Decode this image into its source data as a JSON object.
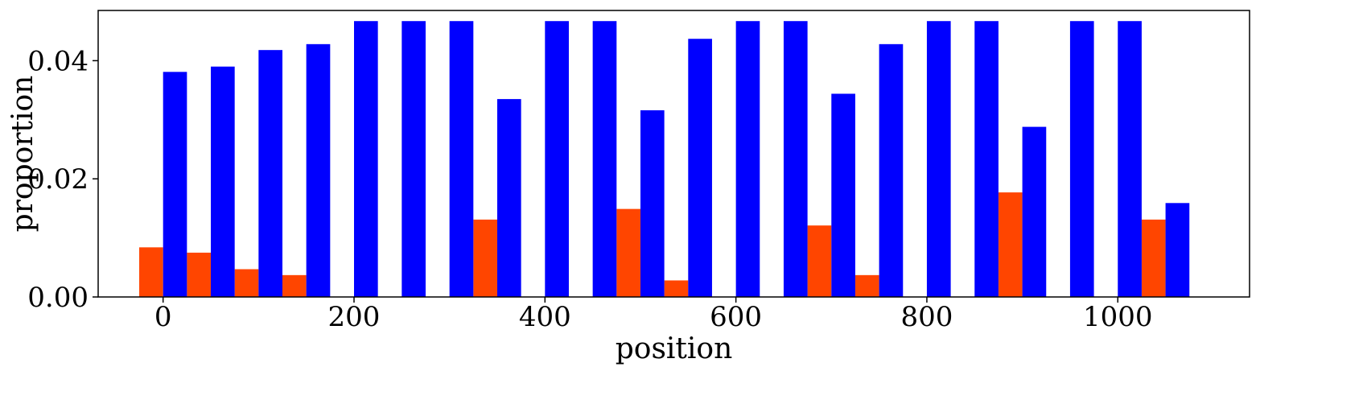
{
  "chart_data": {
    "type": "bar",
    "title": "",
    "xlabel": "position",
    "ylabel": "proportion",
    "xlim": [
      -68,
      1138
    ],
    "ylim": [
      0,
      0.0485
    ],
    "xticks": [
      0,
      200,
      400,
      600,
      800,
      1000
    ],
    "xtick_labels": [
      "0",
      "200",
      "400",
      "600",
      "800",
      "1000"
    ],
    "yticks": [
      0.0,
      0.02,
      0.04
    ],
    "ytick_labels": [
      "0.00",
      "0.02",
      "0.04"
    ],
    "grid": false,
    "legend": "none",
    "x": [
      0,
      50,
      100,
      150,
      200,
      250,
      300,
      350,
      400,
      450,
      500,
      550,
      600,
      650,
      700,
      750,
      800,
      850,
      900,
      950,
      1000,
      1050
    ],
    "series": [
      {
        "color": "#ff4500",
        "values": [
          0.0084,
          0.0075,
          0.0047,
          0.0037,
          0.0,
          0.0,
          0.0,
          0.0131,
          0.0,
          0.0,
          0.0149,
          0.0028,
          0.0,
          0.0,
          0.0121,
          0.0037,
          0.0,
          0.0,
          0.0177,
          0.0,
          0.0,
          0.0131
        ]
      },
      {
        "color": "#0000ff",
        "values": [
          0.0381,
          0.039,
          0.0418,
          0.0428,
          0.0467,
          0.0467,
          0.0467,
          0.0335,
          0.0467,
          0.0467,
          0.0316,
          0.0437,
          0.0467,
          0.0467,
          0.0344,
          0.0428,
          0.0467,
          0.0467,
          0.0288,
          0.0467,
          0.0467,
          0.0159
        ]
      }
    ]
  }
}
